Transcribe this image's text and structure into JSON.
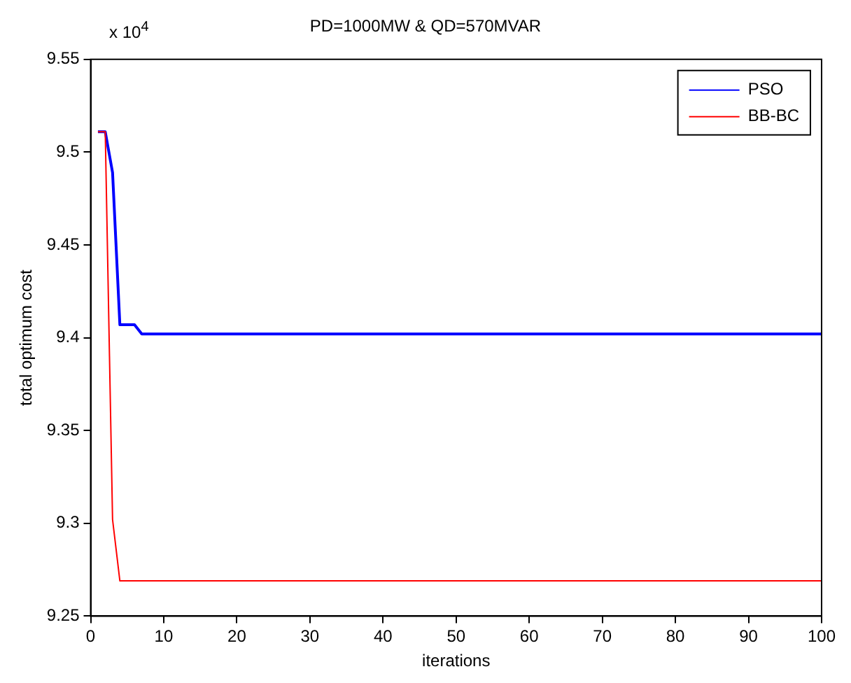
{
  "chart_data": {
    "type": "line",
    "title": "PD=1000MW & QD=570MVAR",
    "xlabel": "iterations",
    "ylabel": "total optimum cost",
    "annotations": [
      "x 10$^{4}$"
    ],
    "xlim": [
      0,
      100
    ],
    "xticks": [
      0,
      10,
      20,
      30,
      40,
      50,
      60,
      70,
      80,
      90,
      100
    ],
    "ylim": [
      9.25,
      9.55
    ],
    "yticks": [
      9.25,
      9.3,
      9.35,
      9.4,
      9.45,
      9.5,
      9.55
    ],
    "series": [
      {
        "name": "PSO",
        "color": "#0000ff",
        "x": [
          1,
          2,
          3,
          4,
          6,
          7,
          100
        ],
        "values": [
          9.511,
          9.511,
          9.489,
          9.407,
          9.407,
          9.402,
          9.402
        ]
      },
      {
        "name": "BB-BC",
        "color": "#ff0000",
        "x": [
          1,
          2,
          3,
          4,
          100
        ],
        "values": [
          9.511,
          9.511,
          9.302,
          9.269,
          9.269
        ]
      }
    ],
    "grid": false,
    "legend": "top right",
    "marker": "none",
    "line_style": "solid"
  }
}
